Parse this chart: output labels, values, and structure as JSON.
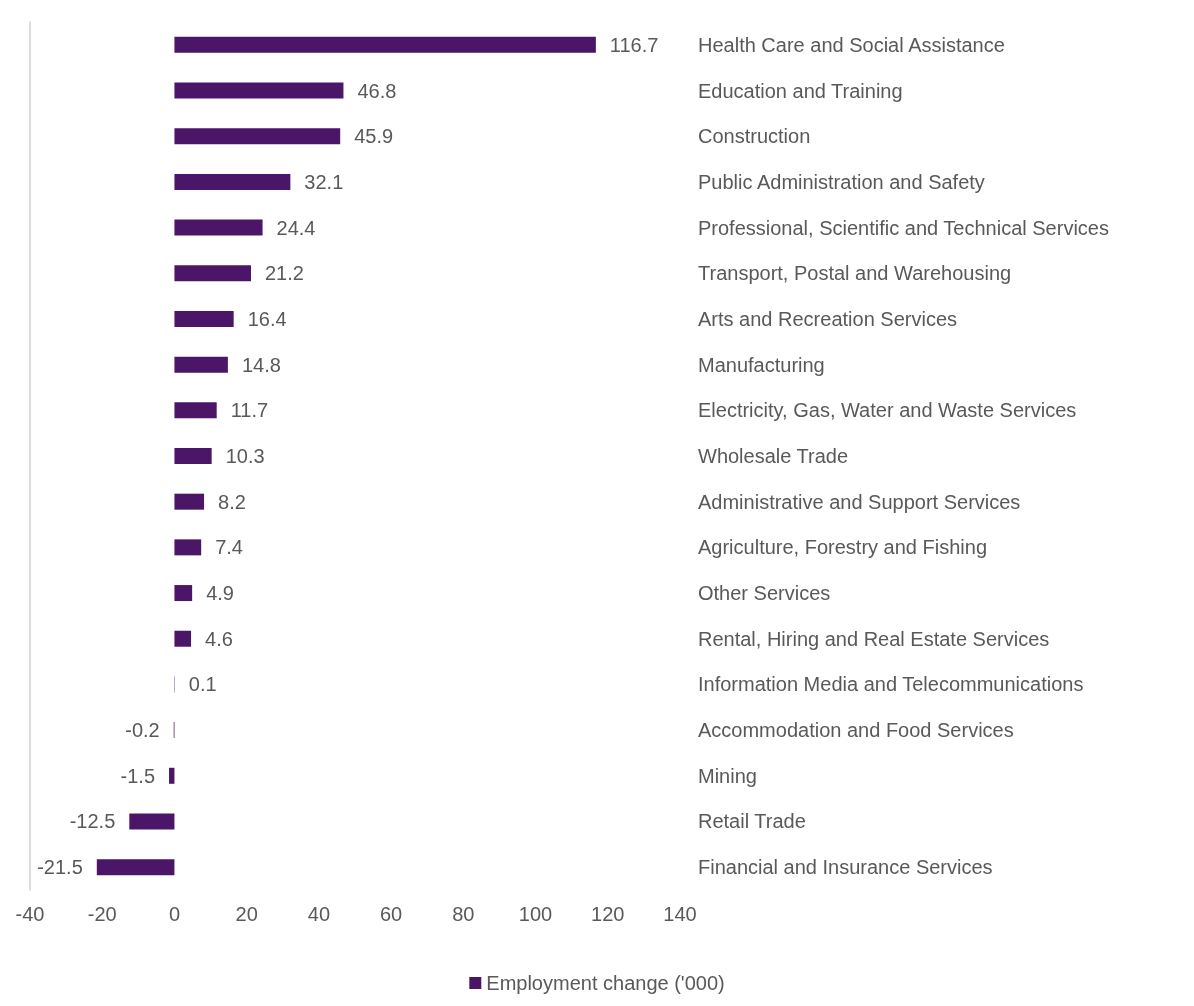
{
  "chart_data": {
    "type": "bar",
    "orientation": "horizontal",
    "categories": [
      "Health Care and Social Assistance",
      "Education and Training",
      "Construction",
      "Public Administration and Safety",
      "Professional, Scientific and Technical Services",
      "Transport, Postal and Warehousing",
      "Arts and Recreation Services",
      "Manufacturing",
      "Electricity, Gas, Water and Waste Services",
      "Wholesale Trade",
      "Administrative and Support Services",
      "Agriculture, Forestry and Fishing",
      "Other Services",
      "Rental, Hiring and Real Estate Services",
      "Information Media and Telecommunications",
      "Accommodation and Food Services",
      "Mining",
      "Retail Trade",
      "Financial and Insurance Services"
    ],
    "series": [
      {
        "name": "Employment change ('000)",
        "color": "#4b1667",
        "values": [
          116.7,
          46.8,
          45.9,
          32.1,
          24.4,
          21.2,
          16.4,
          14.8,
          11.7,
          10.3,
          8.2,
          7.4,
          4.9,
          4.6,
          0.1,
          -0.2,
          -1.5,
          -12.5,
          -21.5
        ]
      }
    ],
    "xlim": [
      -40,
      140
    ],
    "xticks": [
      -40,
      -20,
      0,
      20,
      40,
      60,
      80,
      100,
      120,
      140
    ],
    "data_labels": true,
    "grid": false,
    "legend": "bottom"
  }
}
